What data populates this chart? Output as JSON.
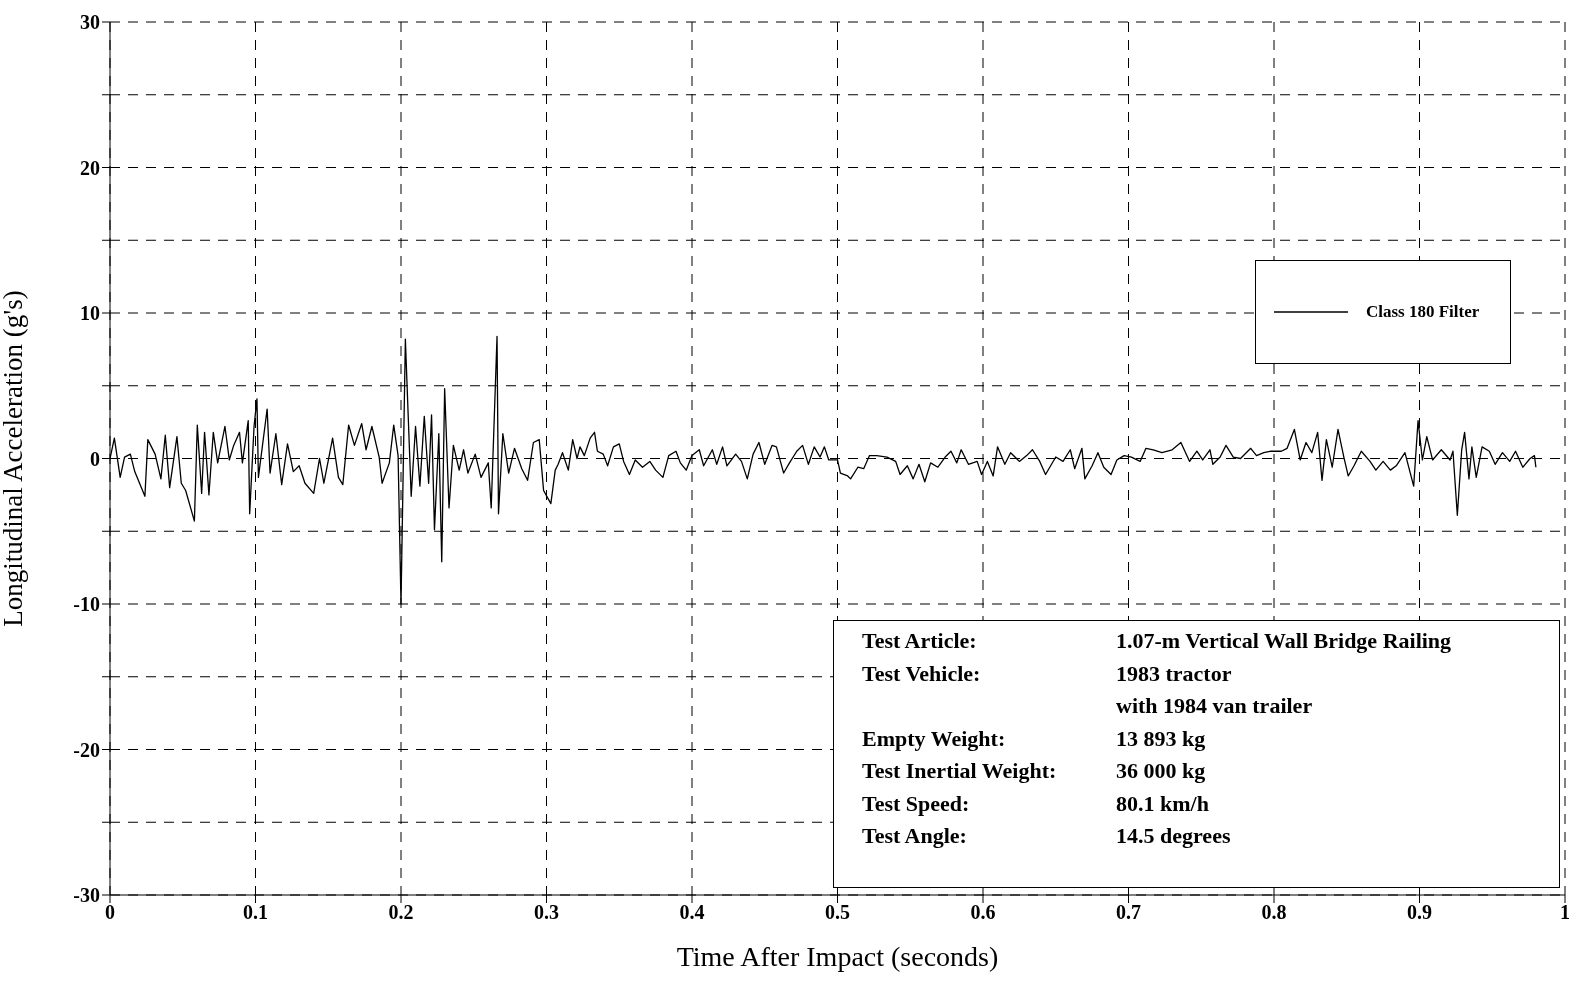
{
  "chart_data": {
    "type": "line",
    "xlabel": "Time After Impact (seconds)",
    "ylabel": "Longitudinal Acceleration (g's)",
    "xlim": [
      0,
      1
    ],
    "xticks": [
      0,
      0.1,
      0.2,
      0.3,
      0.4,
      0.5,
      0.6,
      0.7,
      0.8,
      0.9,
      1
    ],
    "ylim": [
      -30,
      30
    ],
    "yticks": [
      -30,
      {
        "value": -25,
        "label": null
      },
      -20,
      {
        "value": -15,
        "label": null
      },
      -10,
      {
        "value": -5,
        "label": null
      },
      0,
      {
        "value": 5,
        "label": null
      },
      10,
      {
        "value": 15,
        "label": null
      },
      20,
      {
        "value": 25,
        "label": null
      },
      30
    ],
    "grid": true,
    "legend": "top right",
    "marker": "none",
    "line_style": "solid",
    "annotations": [
      "Test Article:",
      "1.07-m Vertical Wall Bridge Railing",
      "Test Vehicle:",
      "1983 tractor\nwith 1984 van trailer",
      "Empty Weight:",
      "13 893 kg",
      "Test Inertial Weight:",
      "36 000 kg",
      "Test Speed:",
      "80.1 km/h",
      "Test Angle:",
      "14.5 degrees"
    ],
    "x": [
      0,
      0.003,
      0.007,
      0.01,
      0.014,
      0.017,
      0.024,
      0.026,
      0.031,
      0.035,
      0.038,
      0.041,
      0.046,
      0.049,
      0.052,
      0.058,
      0.06,
      0.063,
      0.065,
      0.068,
      0.071,
      0.074,
      0.079,
      0.082,
      0.085,
      0.089,
      0.091,
      0.095,
      0.096,
      0.099,
      0.101,
      0.102,
      0.108,
      0.11,
      0.114,
      0.118,
      0.122,
      0.126,
      0.13,
      0.134,
      0.14,
      0.144,
      0.147,
      0.153,
      0.157,
      0.16,
      0.164,
      0.168,
      0.173,
      0.176,
      0.18,
      0.185,
      0.187,
      0.192,
      0.195,
      0.198,
      0.2,
      0.203,
      0.207,
      0.21,
      0.213,
      0.216,
      0.219,
      0.221,
      0.223,
      0.226,
      0.228,
      0.23,
      0.233,
      0.236,
      0.24,
      0.243,
      0.246,
      0.251,
      0.255,
      0.26,
      0.262,
      0.266,
      0.267,
      0.27,
      0.274,
      0.278,
      0.283,
      0.287,
      0.291,
      0.295,
      0.298,
      0.303,
      0.306,
      0.308,
      0.311,
      0.315,
      0.318,
      0.321,
      0.323,
      0.326,
      0.33,
      0.333,
      0.335,
      0.339,
      0.342,
      0.346,
      0.35,
      0.353,
      0.357,
      0.361,
      0.366,
      0.371,
      0.375,
      0.38,
      0.384,
      0.389,
      0.392,
      0.396,
      0.4,
      0.405,
      0.408,
      0.414,
      0.417,
      0.421,
      0.424,
      0.43,
      0.434,
      0.438,
      0.442,
      0.446,
      0.45,
      0.455,
      0.458,
      0.463,
      0.467,
      0.472,
      0.476,
      0.48,
      0.484,
      0.488,
      0.491,
      0.494,
      0.5,
      0.502,
      0.507,
      0.509,
      0.514,
      0.518,
      0.522,
      0.527,
      0.534,
      0.54,
      0.543,
      0.548,
      0.552,
      0.556,
      0.56,
      0.564,
      0.569,
      0.574,
      0.578,
      0.582,
      0.585,
      0.59,
      0.596,
      0.599,
      0.603,
      0.607,
      0.61,
      0.615,
      0.619,
      0.625,
      0.63,
      0.634,
      0.639,
      0.643,
      0.65,
      0.655,
      0.66,
      0.663,
      0.668,
      0.67,
      0.675,
      0.679,
      0.683,
      0.688,
      0.692,
      0.697,
      0.702,
      0.708,
      0.712,
      0.717,
      0.723,
      0.73,
      0.736,
      0.742,
      0.747,
      0.751,
      0.756,
      0.758,
      0.763,
      0.767,
      0.772,
      0.777,
      0.784,
      0.788,
      0.793,
      0.798,
      0.805,
      0.809,
      0.814,
      0.818,
      0.822,
      0.826,
      0.83,
      0.833,
      0.836,
      0.84,
      0.844,
      0.848,
      0.851,
      0.855,
      0.86,
      0.866,
      0.87,
      0.875,
      0.88,
      0.884,
      0.89,
      0.896,
      0.899,
      0.902,
      0.905,
      0.909,
      0.915,
      0.921,
      0.923,
      0.926,
      0.929,
      0.931,
      0.934,
      0.936,
      0.939,
      0.943,
      0.948,
      0.952,
      0.957,
      0.962,
      0.966,
      0.971,
      0.976,
      0.979,
      0.98
    ],
    "series": [
      {
        "name": "Class 180 Filter",
        "color": "#000000",
        "values": [
          0,
          1.4,
          -1.3,
          0.1,
          0.3,
          -0.9,
          -2.6,
          1.3,
          0.3,
          -1.4,
          1.6,
          -2.0,
          1.5,
          -1.7,
          -2.2,
          -4.3,
          2.3,
          -2.4,
          1.8,
          -2.5,
          1.8,
          -0.3,
          2.2,
          -0.1,
          0.9,
          1.8,
          -0.3,
          2.6,
          -3.8,
          2.2,
          4.1,
          -1.3,
          3.4,
          -1.0,
          1.7,
          -1.8,
          1.0,
          -0.9,
          -0.5,
          -1.7,
          -2.4,
          0,
          -1.7,
          1.4,
          -1.3,
          -1.8,
          2.3,
          0.9,
          2.4,
          0.6,
          2.2,
          0.1,
          -1.7,
          -0.3,
          2.3,
          0.2,
          -10.0,
          8.2,
          -2.6,
          2.2,
          -1.9,
          2.9,
          -1.7,
          3.0,
          -4.9,
          1.7,
          -7.1,
          4.8,
          -3.4,
          0.9,
          -0.8,
          0.6,
          -1.0,
          0.3,
          -1.3,
          -0.3,
          -3.4,
          8.4,
          -3.8,
          1.7,
          -1.0,
          0.7,
          -0.7,
          -1.5,
          1.1,
          1.3,
          -2.2,
          -3.1,
          -0.8,
          -0.4,
          0.4,
          -0.8,
          1.3,
          0,
          0.8,
          0.2,
          1.4,
          1.8,
          0.5,
          0.3,
          -0.5,
          0.8,
          1.0,
          -0.2,
          -1.1,
          -0.1,
          -0.6,
          -0.2,
          -0.8,
          -1.3,
          0.2,
          0.5,
          -0.3,
          -0.8,
          0.2,
          0.6,
          -0.5,
          0.6,
          -0.4,
          0.8,
          -0.5,
          0.3,
          -0.2,
          -1.4,
          0.3,
          1.1,
          -0.4,
          0.9,
          0.8,
          -1.0,
          -0.3,
          0.5,
          0.9,
          -0.4,
          0.8,
          0.1,
          0.8,
          -0.1,
          -0.1,
          -1.0,
          -1.2,
          -1.4,
          -0.6,
          -0.7,
          0.2,
          0.2,
          0.1,
          -0.2,
          -1.1,
          -0.5,
          -1.4,
          -0.4,
          -1.6,
          -0.3,
          -0.6,
          0.1,
          0.5,
          -0.3,
          0.6,
          -0.4,
          -0.2,
          -1.1,
          -0.2,
          -1.2,
          0.8,
          -0.4,
          0.4,
          -0.2,
          0.2,
          0.6,
          -0.2,
          -1.1,
          0.1,
          -0.2,
          0.6,
          -0.7,
          0.7,
          -1.4,
          -0.5,
          0.4,
          -0.6,
          -1.1,
          -0.1,
          0.2,
          0.1,
          -0.2,
          0.7,
          0.6,
          0.4,
          0.6,
          1.1,
          -0.2,
          0.5,
          -0.1,
          0.6,
          -0.4,
          0.1,
          0.9,
          0.1,
          0,
          0.7,
          0.2,
          0.4,
          0.5,
          0.5,
          0.7,
          2.0,
          -0.1,
          1.1,
          0.4,
          1.8,
          -1.5,
          1.3,
          -0.6,
          2.0,
          0.1,
          -1.2,
          -0.5,
          0.5,
          -0.2,
          -0.8,
          -0.2,
          -0.8,
          -0.5,
          0.4,
          -1.9,
          2.6,
          -0.1,
          1.5,
          -0.1,
          0.6,
          -0.1,
          0.5,
          -3.9,
          0.6,
          1.8,
          -1.4,
          0.8,
          -1.3,
          0.8,
          0.5,
          -0.4,
          0.4,
          -0.2,
          0.5,
          -0.6,
          0,
          0.2,
          -0.6
        ]
      }
    ]
  }
}
